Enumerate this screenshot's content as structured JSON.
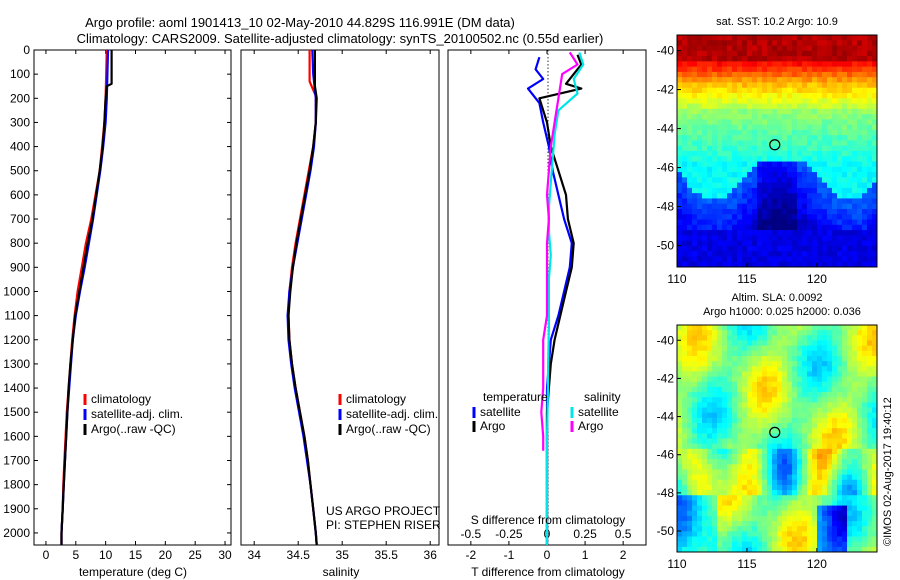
{
  "header": {
    "title_line1": "Argo profile: aoml 1901413_10 02-May-2010 44.829S 116.991E (DM data)",
    "title_line2": "Climatology: CARS2009. Satellite-adjusted climatology: synTS_20100502.nc (0.55d earlier)"
  },
  "colors": {
    "climatology": "#ff0000",
    "satellite": "#0000ff",
    "argo": "#000000",
    "salinity_satellite": "#00e5e5",
    "salinity_argo": "#ff00ff"
  },
  "chart_data": [
    {
      "type": "line",
      "panel": "temperature",
      "xlabel": "temperature (deg C)",
      "ylabel": "",
      "xlim": [
        -2,
        31
      ],
      "ylim": [
        2050,
        0
      ],
      "xticks": [
        0,
        5,
        10,
        15,
        20,
        25,
        30
      ],
      "yticks": [
        0,
        100,
        200,
        300,
        400,
        500,
        600,
        700,
        800,
        900,
        1000,
        1100,
        1200,
        1300,
        1400,
        1500,
        1600,
        1700,
        1800,
        1900,
        2000
      ],
      "legend": [
        "climatology",
        "satellite-adj. clim.",
        "Argo(..raw -QC)"
      ],
      "legend_position": "lower-right",
      "series": [
        {
          "name": "climatology",
          "color_key": "climatology",
          "points": [
            [
              10.2,
              0
            ],
            [
              10.1,
              100
            ],
            [
              10.0,
              200
            ],
            [
              9.8,
              300
            ],
            [
              9.4,
              400
            ],
            [
              9.0,
              500
            ],
            [
              8.3,
              600
            ],
            [
              7.6,
              700
            ],
            [
              6.7,
              800
            ],
            [
              6.0,
              900
            ],
            [
              5.3,
              1000
            ],
            [
              4.8,
              1100
            ],
            [
              4.4,
              1200
            ],
            [
              4.1,
              1300
            ],
            [
              3.8,
              1400
            ],
            [
              3.5,
              1500
            ],
            [
              3.3,
              1600
            ],
            [
              3.1,
              1700
            ],
            [
              2.9,
              1800
            ],
            [
              2.8,
              1900
            ],
            [
              2.6,
              2000
            ],
            [
              2.6,
              2050
            ]
          ]
        },
        {
          "name": "satellite-adj. clim.",
          "color_key": "satellite",
          "points": [
            [
              10.4,
              0
            ],
            [
              10.3,
              100
            ],
            [
              10.2,
              200
            ],
            [
              10.0,
              300
            ],
            [
              9.6,
              400
            ],
            [
              9.1,
              500
            ],
            [
              8.5,
              600
            ],
            [
              7.9,
              700
            ],
            [
              7.2,
              800
            ],
            [
              6.5,
              900
            ],
            [
              5.7,
              1000
            ],
            [
              5.0,
              1100
            ],
            [
              4.5,
              1200
            ],
            [
              4.2,
              1300
            ],
            [
              3.9,
              1400
            ],
            [
              3.6,
              1500
            ],
            [
              3.4,
              1600
            ],
            [
              3.2,
              1700
            ],
            [
              3.0,
              1800
            ],
            [
              2.8,
              1900
            ],
            [
              2.6,
              2000
            ],
            [
              2.6,
              2050
            ]
          ]
        },
        {
          "name": "Argo(..raw -QC)",
          "color_key": "argo",
          "points": [
            [
              11.0,
              0
            ],
            [
              11.0,
              140
            ],
            [
              10.2,
              150
            ],
            [
              10.0,
              200
            ],
            [
              9.8,
              300
            ],
            [
              9.5,
              400
            ],
            [
              9.0,
              500
            ],
            [
              8.4,
              600
            ],
            [
              7.8,
              700
            ],
            [
              7.0,
              800
            ],
            [
              6.3,
              900
            ],
            [
              5.6,
              1000
            ],
            [
              4.9,
              1100
            ],
            [
              4.5,
              1200
            ],
            [
              4.1,
              1300
            ],
            [
              3.8,
              1400
            ],
            [
              3.6,
              1500
            ],
            [
              3.4,
              1600
            ],
            [
              3.2,
              1700
            ],
            [
              3.0,
              1800
            ],
            [
              2.8,
              1900
            ],
            [
              2.6,
              2000
            ],
            [
              2.6,
              2050
            ]
          ]
        }
      ]
    },
    {
      "type": "line",
      "panel": "salinity",
      "xlabel": "salinity",
      "ylabel": "",
      "xlim": [
        33.85,
        36.1
      ],
      "ylim": [
        2050,
        0
      ],
      "xticks": [
        34,
        34.5,
        35,
        35.5,
        36
      ],
      "legend": [
        "climatology",
        "satellite-adj. clim.",
        "Argo(..raw -QC)"
      ],
      "legend_position": "lower-right",
      "annotations": [
        "US ARGO PROJECT",
        "PI: STEPHEN RISER"
      ],
      "series": [
        {
          "name": "climatology",
          "color_key": "climatology",
          "points": [
            [
              34.63,
              0
            ],
            [
              34.63,
              130
            ],
            [
              34.7,
              190
            ],
            [
              34.7,
              300
            ],
            [
              34.67,
              400
            ],
            [
              34.62,
              500
            ],
            [
              34.57,
              600
            ],
            [
              34.52,
              700
            ],
            [
              34.47,
              800
            ],
            [
              34.43,
              900
            ],
            [
              34.4,
              1000
            ],
            [
              34.39,
              1100
            ],
            [
              34.4,
              1200
            ],
            [
              34.43,
              1300
            ],
            [
              34.47,
              1400
            ],
            [
              34.52,
              1500
            ],
            [
              34.57,
              1600
            ],
            [
              34.61,
              1700
            ],
            [
              34.64,
              1800
            ],
            [
              34.67,
              1900
            ],
            [
              34.7,
              2000
            ],
            [
              34.71,
              2050
            ]
          ]
        },
        {
          "name": "satellite-adj. clim.",
          "color_key": "satellite",
          "points": [
            [
              34.66,
              0
            ],
            [
              34.67,
              100
            ],
            [
              34.7,
              200
            ],
            [
              34.7,
              300
            ],
            [
              34.68,
              400
            ],
            [
              34.64,
              500
            ],
            [
              34.59,
              600
            ],
            [
              34.54,
              700
            ],
            [
              34.49,
              800
            ],
            [
              34.44,
              900
            ],
            [
              34.4,
              1000
            ],
            [
              34.38,
              1100
            ],
            [
              34.39,
              1200
            ],
            [
              34.42,
              1300
            ],
            [
              34.46,
              1400
            ],
            [
              34.51,
              1500
            ],
            [
              34.56,
              1600
            ],
            [
              34.6,
              1700
            ],
            [
              34.64,
              1800
            ],
            [
              34.67,
              1900
            ],
            [
              34.7,
              2000
            ],
            [
              34.71,
              2050
            ]
          ]
        },
        {
          "name": "Argo(..raw -QC)",
          "color_key": "argo",
          "points": [
            [
              34.69,
              0
            ],
            [
              34.69,
              150
            ],
            [
              34.71,
              200
            ],
            [
              34.7,
              300
            ],
            [
              34.67,
              400
            ],
            [
              34.63,
              500
            ],
            [
              34.58,
              600
            ],
            [
              34.53,
              700
            ],
            [
              34.48,
              800
            ],
            [
              34.44,
              900
            ],
            [
              34.41,
              1000
            ],
            [
              34.39,
              1100
            ],
            [
              34.4,
              1200
            ],
            [
              34.43,
              1300
            ],
            [
              34.47,
              1400
            ],
            [
              34.52,
              1500
            ],
            [
              34.57,
              1600
            ],
            [
              34.61,
              1700
            ],
            [
              34.64,
              1800
            ],
            [
              34.67,
              1900
            ],
            [
              34.7,
              2000
            ],
            [
              34.71,
              2050
            ]
          ]
        }
      ]
    },
    {
      "type": "line",
      "panel": "difference",
      "xlabel": "T difference from climatology",
      "top_xlabel": "S difference from climatology",
      "xlim": [
        -2.6,
        2.6
      ],
      "ylim": [
        2050,
        0
      ],
      "xticks": [
        -2,
        -1,
        0,
        1,
        2
      ],
      "top_xticks": [
        "-0.5",
        "-0.25",
        "0",
        "0.25",
        "0.5"
      ],
      "legend": [
        "temperature",
        "satellite",
        "Argo",
        "salinity",
        "satellite",
        "Argo"
      ],
      "legend_position": "lower-right",
      "series": [
        {
          "name": "satellite",
          "group": "temperature",
          "color_key": "satellite",
          "points": [
            [
              -0.2,
              30
            ],
            [
              -0.3,
              80
            ],
            [
              -0.1,
              120
            ],
            [
              -0.5,
              160
            ],
            [
              -0.2,
              220
            ],
            [
              -0.1,
              300
            ],
            [
              0.05,
              400
            ],
            [
              0.15,
              500
            ],
            [
              0.3,
              600
            ],
            [
              0.45,
              700
            ],
            [
              0.65,
              800
            ],
            [
              0.6,
              900
            ],
            [
              0.45,
              1000
            ],
            [
              0.3,
              1100
            ],
            [
              0.1,
              1200
            ],
            [
              0.05,
              1300
            ],
            [
              0.0,
              1400
            ],
            [
              0.0,
              1500
            ],
            [
              0.0,
              1600
            ],
            [
              0.0,
              1700
            ],
            [
              0.0,
              1800
            ],
            [
              0.0,
              1900
            ],
            [
              0.0,
              2000
            ],
            [
              0.0,
              2050
            ]
          ]
        },
        {
          "name": "Argo",
          "group": "temperature",
          "color_key": "argo",
          "points": [
            [
              0.8,
              20
            ],
            [
              0.9,
              60
            ],
            [
              0.5,
              140
            ],
            [
              0.9,
              160
            ],
            [
              -0.2,
              200
            ],
            [
              0.0,
              300
            ],
            [
              0.1,
              400
            ],
            [
              0.3,
              500
            ],
            [
              0.5,
              600
            ],
            [
              0.55,
              700
            ],
            [
              0.7,
              800
            ],
            [
              0.65,
              900
            ],
            [
              0.5,
              1000
            ],
            [
              0.35,
              1100
            ],
            [
              0.2,
              1200
            ],
            [
              0.1,
              1300
            ],
            [
              0.05,
              1400
            ],
            [
              0.0,
              1500
            ],
            [
              0.0,
              1600
            ],
            [
              0.0,
              1700
            ],
            [
              0.0,
              1800
            ],
            [
              0.0,
              1900
            ],
            [
              0.0,
              2000
            ],
            [
              0.0,
              2050
            ]
          ]
        },
        {
          "name": "satellite",
          "group": "salinity",
          "color_key": "salinity_satellite",
          "points": [
            [
              0.85,
              10
            ],
            [
              0.95,
              60
            ],
            [
              0.7,
              120
            ],
            [
              0.8,
              180
            ],
            [
              0.3,
              250
            ],
            [
              0.2,
              350
            ],
            [
              0.15,
              450
            ],
            [
              0.1,
              550
            ],
            [
              0.05,
              650
            ],
            [
              0.05,
              750
            ],
            [
              0.1,
              850
            ],
            [
              0.05,
              950
            ],
            [
              0.05,
              1050
            ],
            [
              0.05,
              1150
            ],
            [
              0.03,
              1300
            ],
            [
              0.02,
              1450
            ],
            [
              0.0,
              1600
            ],
            [
              0.0,
              1700
            ],
            [
              0.0,
              1800
            ],
            [
              0.0,
              1900
            ],
            [
              0.0,
              2000
            ],
            [
              0.0,
              2050
            ]
          ]
        },
        {
          "name": "Argo",
          "group": "salinity",
          "color_key": "salinity_argo",
          "points": [
            [
              0.6,
              10
            ],
            [
              0.8,
              60
            ],
            [
              0.4,
              100
            ],
            [
              0.3,
              200
            ],
            [
              0.2,
              300
            ],
            [
              0.1,
              400
            ],
            [
              0.05,
              500
            ],
            [
              0.0,
              600
            ],
            [
              0.05,
              700
            ],
            [
              0.0,
              800
            ],
            [
              0.0,
              900
            ],
            [
              0.0,
              1000
            ],
            [
              0.0,
              1100
            ],
            [
              -0.1,
              1200
            ],
            [
              -0.1,
              1300
            ],
            [
              -0.1,
              1400
            ],
            [
              -0.15,
              1500
            ],
            [
              -0.1,
              1600
            ],
            [
              -0.1,
              1660
            ]
          ]
        }
      ]
    },
    {
      "type": "heatmap",
      "panel": "sst-map",
      "title": "sat. SST: 10.2  Argo: 10.9",
      "xlim": [
        110,
        124.3
      ],
      "ylim": [
        -51.1,
        -39.2
      ],
      "xticks": [
        110,
        115,
        120
      ],
      "yticks": [
        -40,
        -42,
        -44,
        -46,
        -48,
        -50
      ],
      "marker": {
        "lon": 116.991,
        "lat": -44.829
      }
    },
    {
      "type": "heatmap",
      "panel": "sla-map",
      "title": "Altim. SLA: 0.0092",
      "subtitle": "Argo h1000: 0.025 h2000: 0.036",
      "xlim": [
        110,
        124.3
      ],
      "ylim": [
        -51.1,
        -39.2
      ],
      "xticks": [
        110,
        115,
        120
      ],
      "yticks": [
        -40,
        -42,
        -44,
        -46,
        -48,
        -50
      ],
      "marker": {
        "lon": 116.991,
        "lat": -44.829
      }
    }
  ],
  "footer": {
    "credit": "©IMOS 02-Aug-2017 19:40:12"
  }
}
